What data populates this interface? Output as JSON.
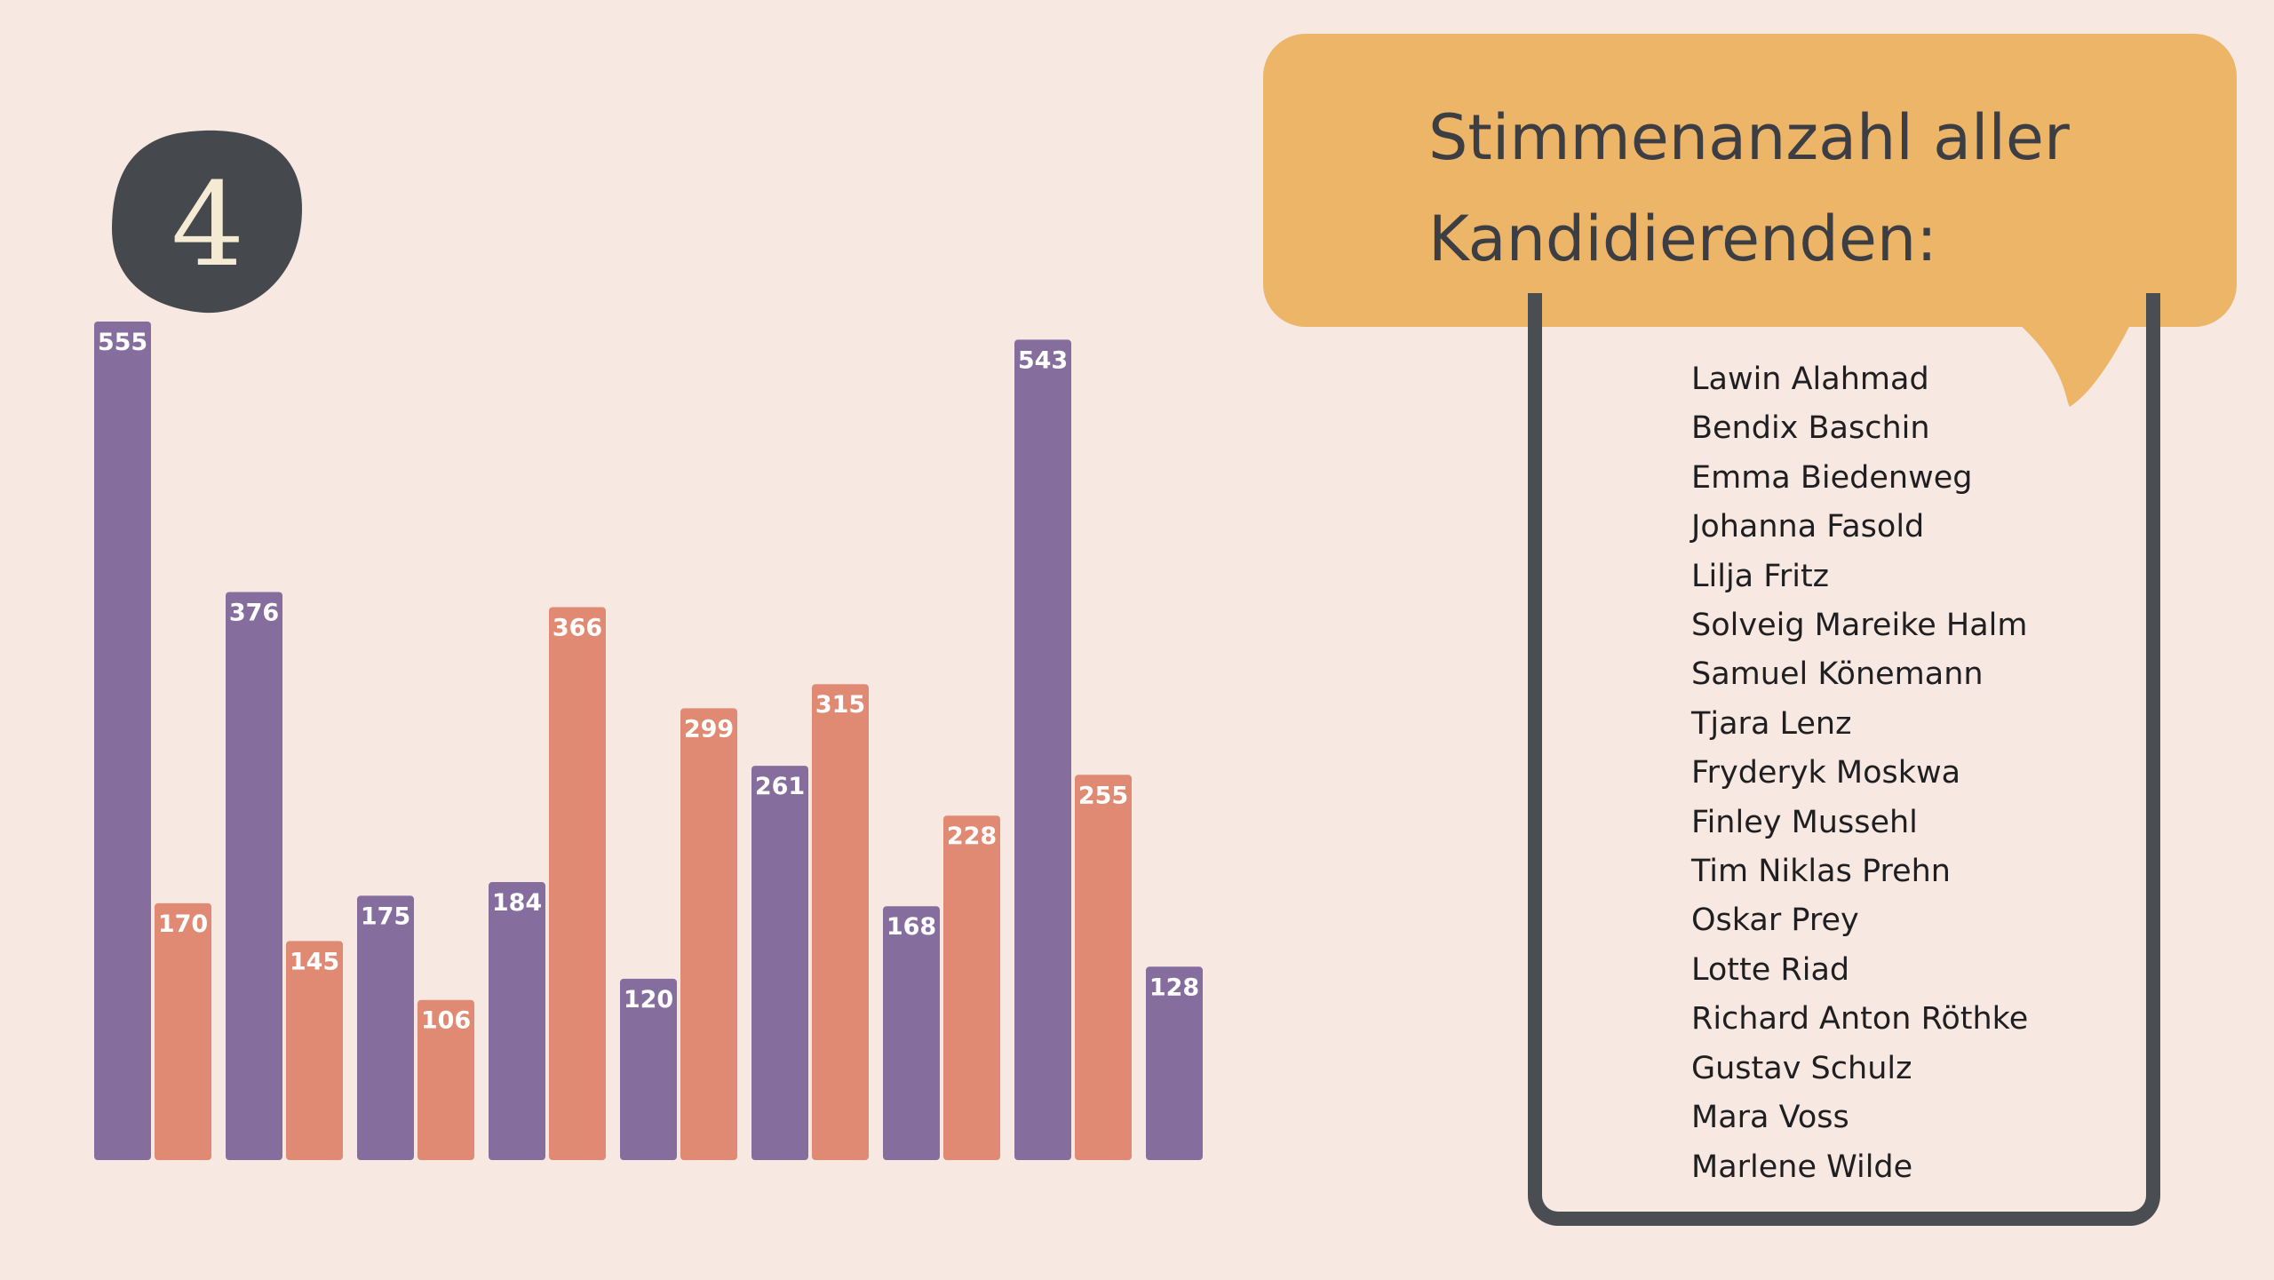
{
  "slide": {
    "badge_number": "4",
    "title_lines": [
      "Stimmenanzahl aller",
      "Kandidierenden:"
    ],
    "candidates": [
      "Lawin Alahmad",
      "Bendix Baschin",
      "Emma Biedenweg",
      "Johanna Fasold",
      "Lilja Fritz",
      "Solveig Mareike Halm",
      "Samuel Könemann",
      "Tjara Lenz",
      "Fryderyk Moskwa",
      "Finley Mussehl",
      "Tim Niklas Prehn",
      "Oskar Prey",
      "Lotte Riad",
      "Richard Anton Röthke",
      "Gustav Schulz",
      "Mara Voss",
      "Marlene Wilde"
    ]
  },
  "chart_data": {
    "type": "bar",
    "values": [
      555,
      170,
      376,
      145,
      175,
      106,
      184,
      366,
      120,
      299,
      261,
      315,
      168,
      228,
      543,
      255,
      128
    ],
    "colors": {
      "purple": "#856e9e",
      "orange": "#e08a73",
      "badge": "#45484d",
      "bubble": "#ecb567",
      "background": "#f7e8e1"
    }
  }
}
